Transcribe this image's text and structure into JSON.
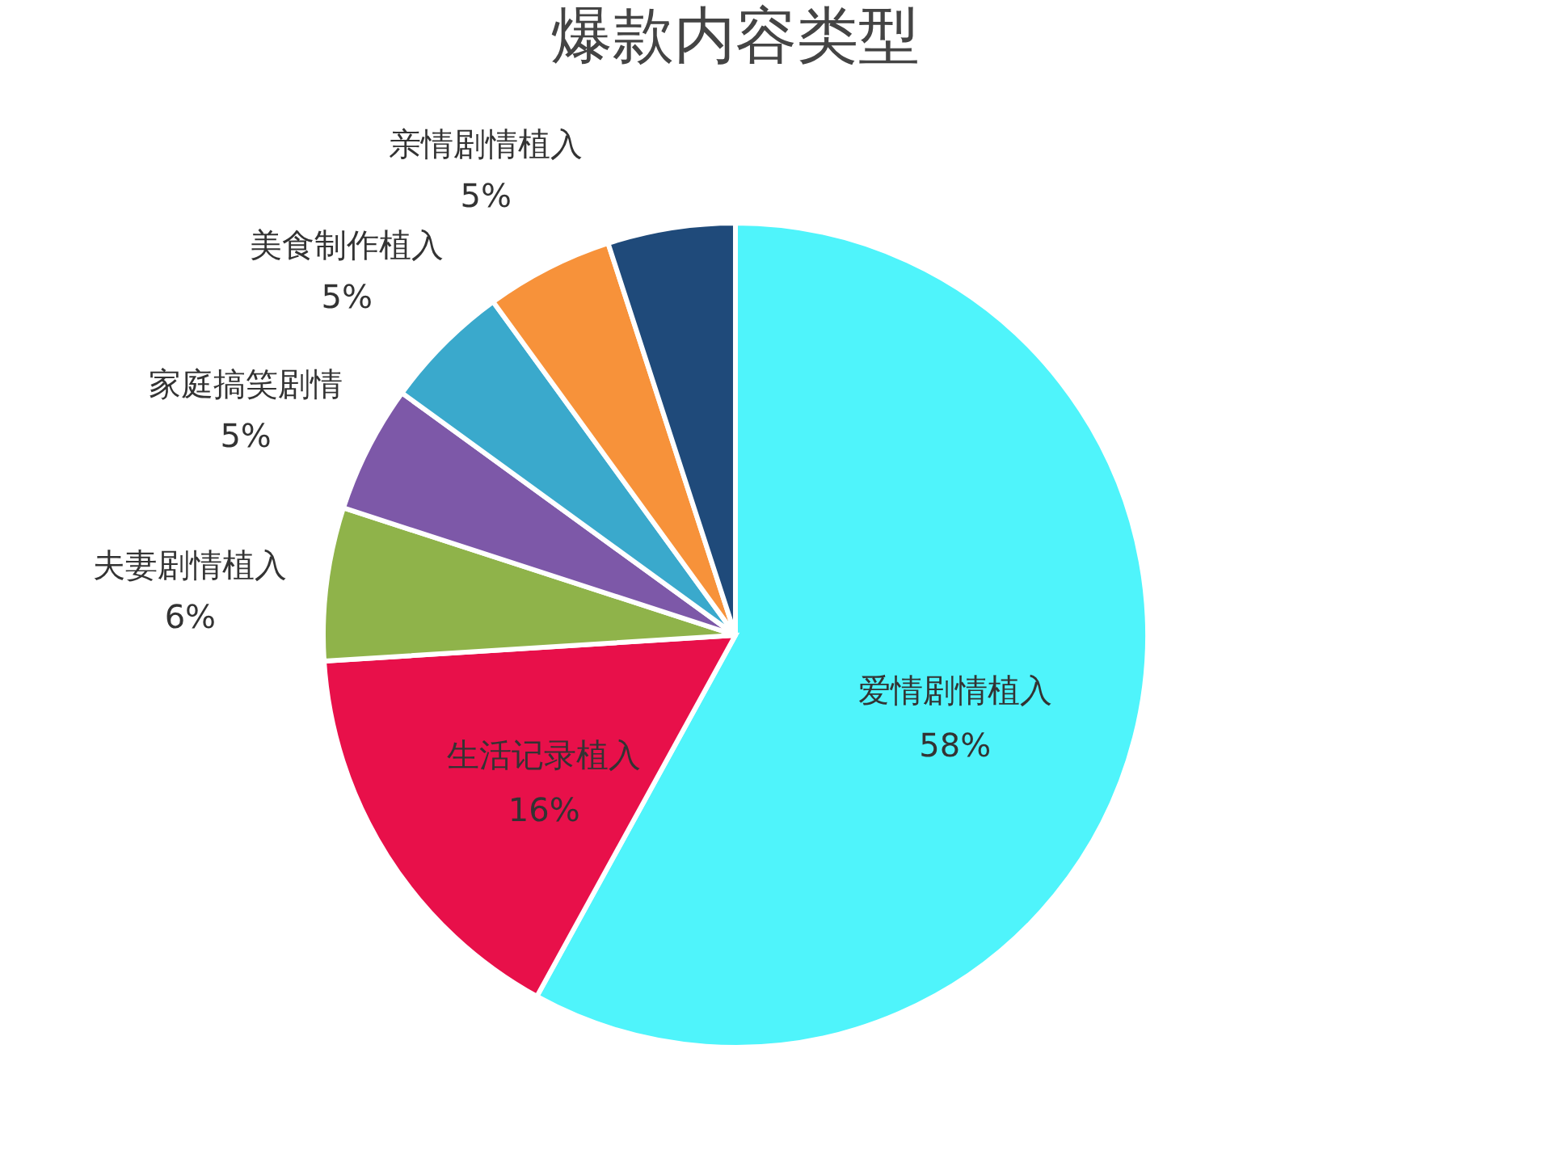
{
  "chart_data": {
    "type": "pie",
    "title": "爆款内容类型",
    "categories": [
      "爱情剧情植入",
      "生活记录植入",
      "夫妻剧情植入",
      "家庭搞笑剧情",
      "美食制作植入",
      "亲情剧情植入",
      null
    ],
    "values": [
      58,
      16,
      6,
      5,
      5,
      5,
      5
    ],
    "value_labels": [
      "58%",
      "16%",
      "6%",
      "5%",
      "5%",
      "5%",
      null
    ],
    "colors": [
      "#4ff4fb",
      "#e8104a",
      "#8fb34a",
      "#7d58a8",
      "#3aa9cc",
      "#f7923a",
      "#1f4a7a"
    ],
    "legend": false
  }
}
